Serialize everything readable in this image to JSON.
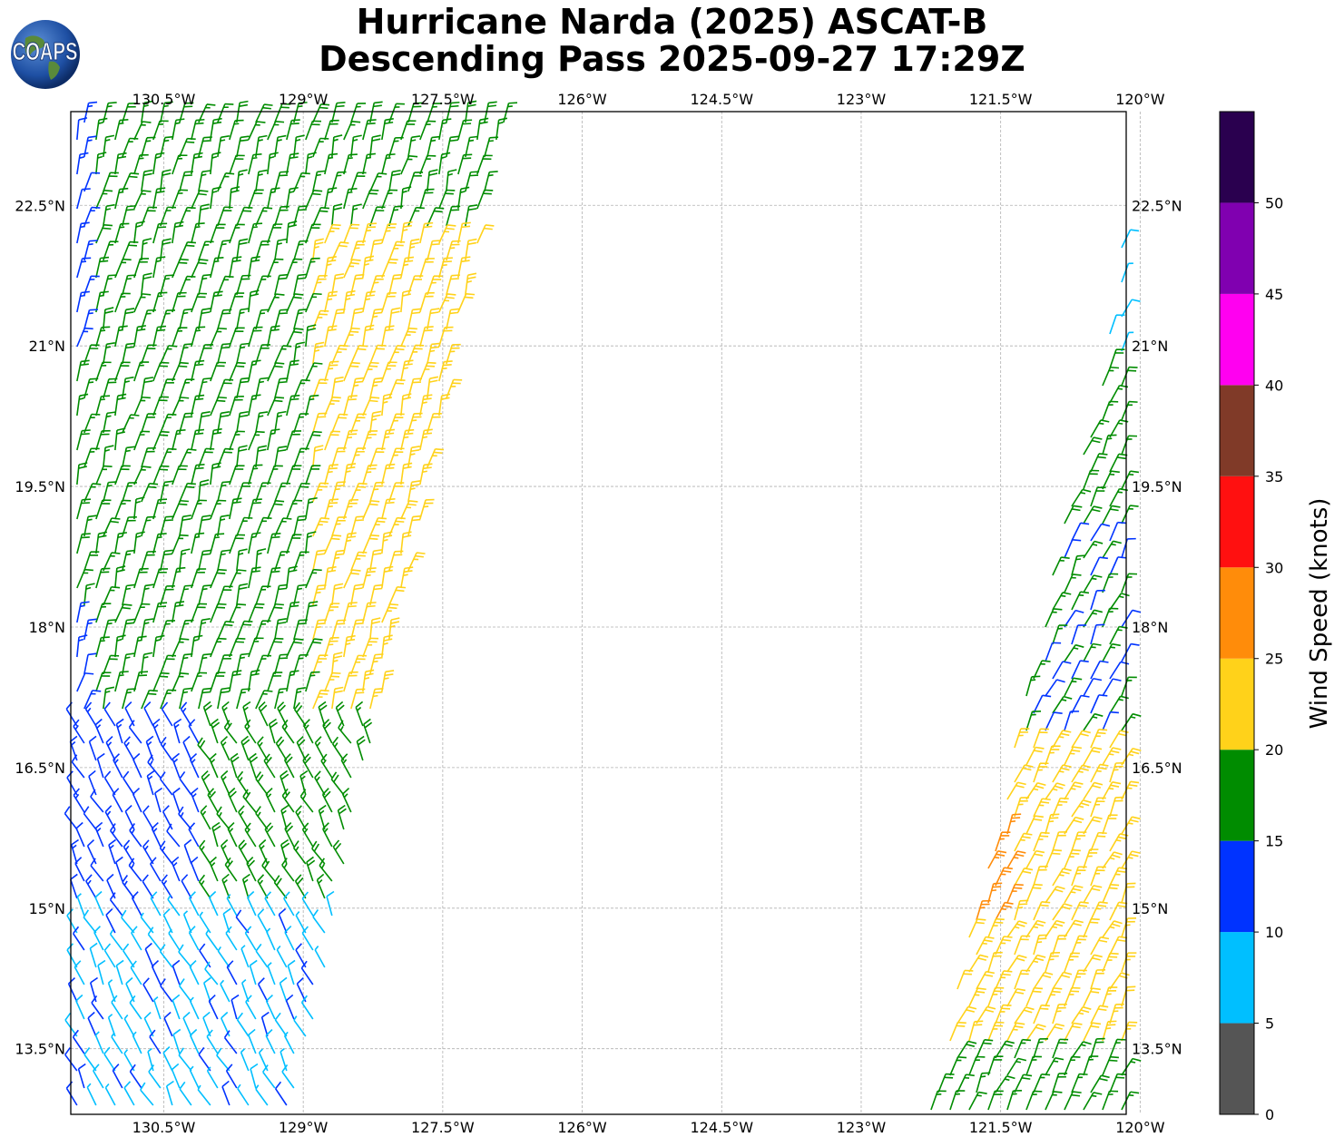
{
  "title": {
    "line1": "Hurricane Narda (2025) ASCAT-B",
    "line2": "Descending Pass 2025-09-27 17:29Z"
  },
  "logo": {
    "text": "COAPS",
    "icon": "globe-icon"
  },
  "map": {
    "lon_range": [
      -131.5,
      -120.15
    ],
    "lat_range": [
      12.8,
      23.5
    ],
    "lon_ticks": [
      {
        "value": -130.5,
        "label": "130.5°W"
      },
      {
        "value": -129.0,
        "label": "129°W"
      },
      {
        "value": -127.5,
        "label": "127.5°W"
      },
      {
        "value": -126.0,
        "label": "126°W"
      },
      {
        "value": -124.5,
        "label": "124.5°W"
      },
      {
        "value": -123.0,
        "label": "123°W"
      },
      {
        "value": -121.5,
        "label": "121.5°W"
      },
      {
        "value": -120.0,
        "label": "120°W"
      }
    ],
    "lat_ticks": [
      {
        "value": 22.5,
        "label": "22.5°N"
      },
      {
        "value": 21.0,
        "label": "21°N"
      },
      {
        "value": 19.5,
        "label": "19.5°N"
      },
      {
        "value": 18.0,
        "label": "18°N"
      },
      {
        "value": 16.5,
        "label": "16.5°N"
      },
      {
        "value": 15.0,
        "label": "15°N"
      },
      {
        "value": 13.5,
        "label": "13.5°N"
      }
    ],
    "grid": true,
    "barb_type": "wind barbs"
  },
  "colorbar": {
    "label": "Wind Speed (knots)",
    "bins": [
      {
        "min": 0,
        "max": 5,
        "color": "#555555"
      },
      {
        "min": 5,
        "max": 10,
        "color": "#00bfff"
      },
      {
        "min": 10,
        "max": 15,
        "color": "#0033ff"
      },
      {
        "min": 15,
        "max": 20,
        "color": "#008c00"
      },
      {
        "min": 20,
        "max": 25,
        "color": "#ffd21a"
      },
      {
        "min": 25,
        "max": 30,
        "color": "#ff8c0a"
      },
      {
        "min": 30,
        "max": 35,
        "color": "#ff1010"
      },
      {
        "min": 35,
        "max": 40,
        "color": "#803a28"
      },
      {
        "min": 40,
        "max": 45,
        "color": "#ff00f0"
      },
      {
        "min": 45,
        "max": 50,
        "color": "#8000b0"
      },
      {
        "min": 50,
        "max": 55,
        "color": "#2a004f"
      }
    ],
    "tick_labels": [
      "0",
      "5",
      "10",
      "15",
      "20",
      "25",
      "30",
      "35",
      "40",
      "45",
      "50"
    ]
  },
  "swaths": [
    {
      "name": "western-swath",
      "corners_lonlat": [
        [
          -131.5,
          12.8
        ],
        [
          -129.1,
          12.8
        ],
        [
          -126.8,
          23.5
        ],
        [
          -131.5,
          23.5
        ]
      ]
    },
    {
      "name": "eastern-swath",
      "corners_lonlat": [
        [
          -122.3,
          12.8
        ],
        [
          -120.15,
          12.8
        ],
        [
          -120.15,
          22.5
        ],
        [
          -120.4,
          20.9
        ]
      ]
    }
  ]
}
